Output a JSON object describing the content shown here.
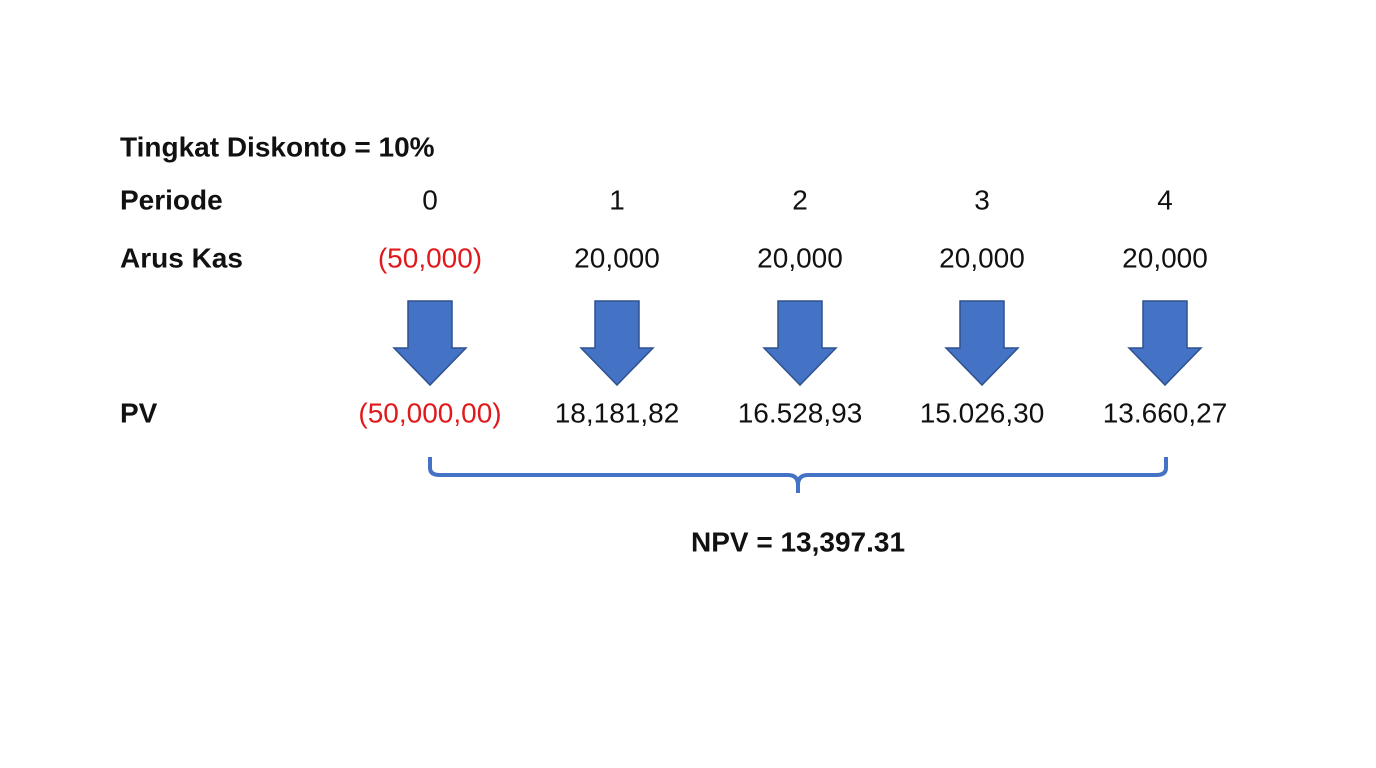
{
  "title": "Tingkat Diskonto = 10%",
  "periode": {
    "label": "Periode",
    "values": [
      "0",
      "1",
      "2",
      "3",
      "4"
    ]
  },
  "arus_kas": {
    "label": "Arus Kas",
    "values": [
      "(50,000)",
      "20,000",
      "20,000",
      "20,000",
      "20,000"
    ]
  },
  "pv": {
    "label": "PV",
    "values": [
      "(50,000,00)",
      "18,181,82",
      "16.528,93",
      "15.026,30",
      "13.660,27"
    ]
  },
  "npv": "NPV = 13,397.31"
}
